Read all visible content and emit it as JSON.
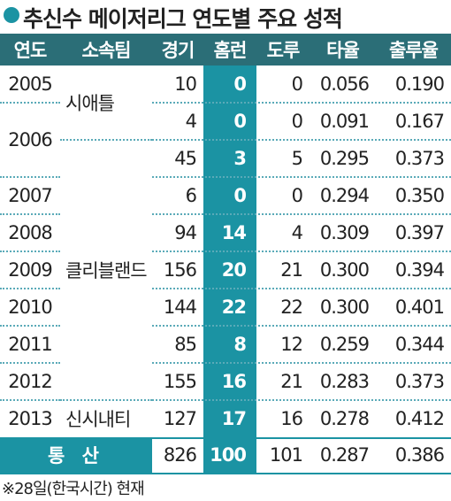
{
  "title": "추신수 메이저리그 연도별 주요 성적",
  "table": {
    "columns": [
      "연도",
      "소속팀",
      "경기",
      "홈런",
      "도루",
      "타율",
      "출루율"
    ],
    "rows": [
      {
        "year": "2005",
        "team": "시애틀",
        "cells": [
          "10",
          "0",
          "0",
          "0.056",
          "0.190"
        ]
      },
      {
        "year": "2006",
        "team": null,
        "cells": [
          "4",
          "0",
          "0",
          "0.091",
          "0.167"
        ]
      },
      {
        "year": null,
        "team": "클리블랜드",
        "cells": [
          "45",
          "3",
          "5",
          "0.295",
          "0.373"
        ]
      },
      {
        "year": "2007",
        "team": null,
        "cells": [
          "6",
          "0",
          "0",
          "0.294",
          "0.350"
        ]
      },
      {
        "year": "2008",
        "team": null,
        "cells": [
          "94",
          "14",
          "4",
          "0.309",
          "0.397"
        ]
      },
      {
        "year": "2009",
        "team": null,
        "cells": [
          "156",
          "20",
          "21",
          "0.300",
          "0.394"
        ]
      },
      {
        "year": "2010",
        "team": null,
        "cells": [
          "144",
          "22",
          "22",
          "0.300",
          "0.401"
        ]
      },
      {
        "year": "2011",
        "team": null,
        "cells": [
          "85",
          "8",
          "12",
          "0.259",
          "0.344"
        ]
      },
      {
        "year": "2012",
        "team": null,
        "cells": [
          "155",
          "16",
          "21",
          "0.283",
          "0.373"
        ]
      },
      {
        "year": "2013",
        "team": "신시내티",
        "cells": [
          "127",
          "17",
          "16",
          "0.278",
          "0.412"
        ]
      }
    ],
    "total": {
      "label": "통 산",
      "cells": [
        "826",
        "100",
        "101",
        "0.287",
        "0.386"
      ]
    }
  },
  "footnote": "※28일(한국시간) 현재"
}
